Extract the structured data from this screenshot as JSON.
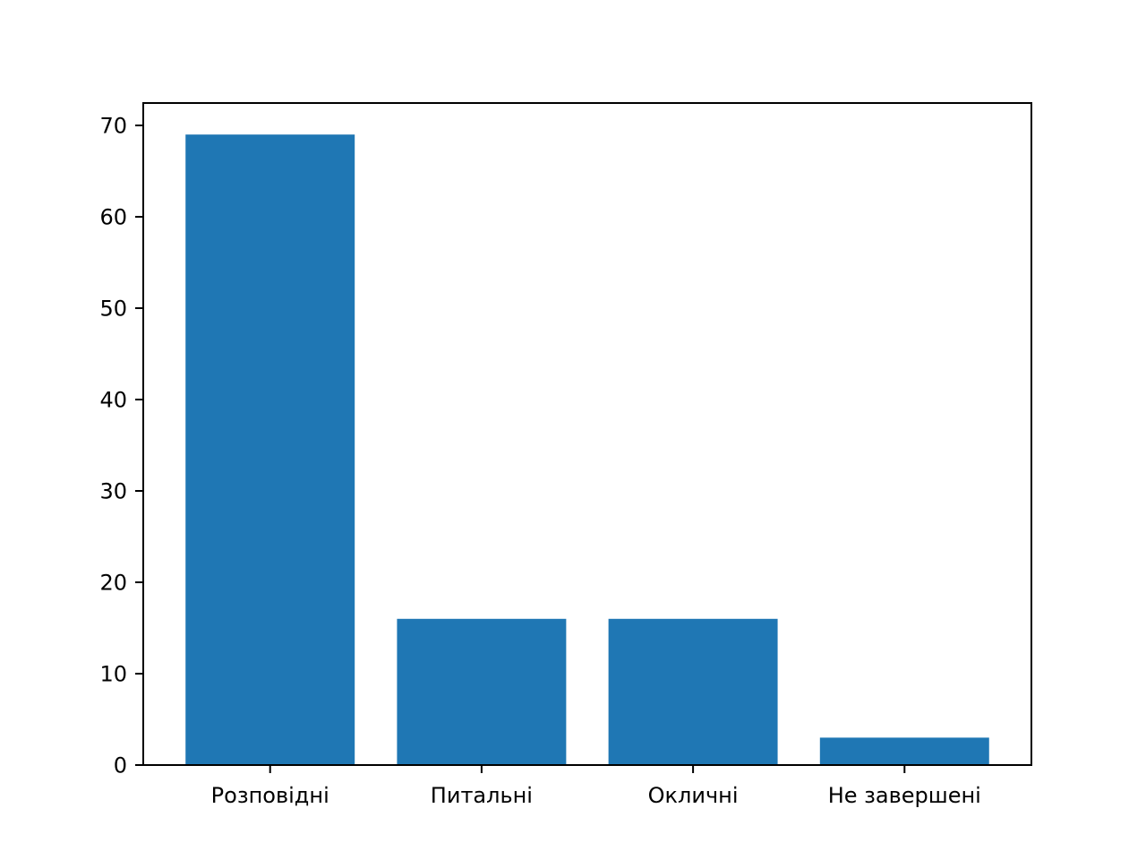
{
  "chart_data": {
    "type": "bar",
    "categories": [
      "Розповідні",
      "Питальні",
      "Окличні",
      "Не завершені"
    ],
    "values": [
      69,
      16,
      16,
      3
    ],
    "title": "",
    "xlabel": "",
    "ylabel": "",
    "ylim": [
      0,
      72.45
    ],
    "yticks": [
      0,
      10,
      20,
      30,
      40,
      50,
      60,
      70
    ],
    "grid": false,
    "legend": "none",
    "bar_color": "#1f77b4"
  }
}
